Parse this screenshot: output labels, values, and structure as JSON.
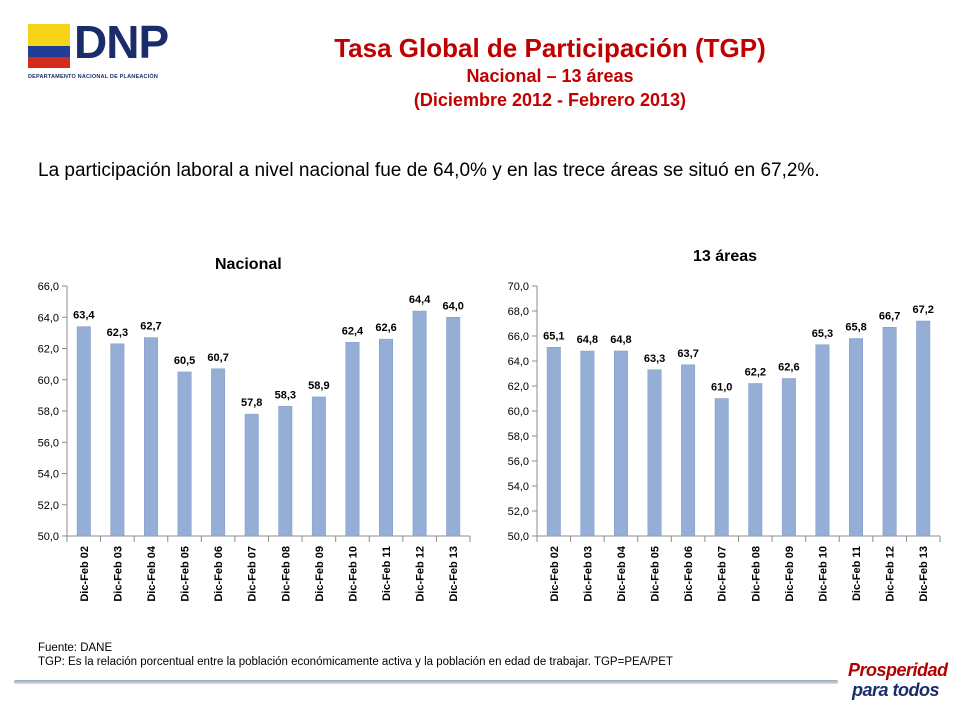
{
  "logo": {
    "word": "DNP",
    "subtitle": "DEPARTAMENTO NACIONAL DE PLANEACIÓN",
    "colors": {
      "yellow": "#f7d417",
      "blue": "#1e3f95",
      "red": "#d52b1e"
    }
  },
  "header": {
    "title": "Tasa Global de Participación (TGP)",
    "subtitle1": "Nacional – 13 áreas",
    "subtitle2": "(Diciembre 2012 - Febrero 2013)"
  },
  "intro": "La participación laboral a nivel nacional fue de 64,0% y en las trece áreas se situó en 67,2%.",
  "chart_data": [
    {
      "type": "bar",
      "title": "Nacional",
      "categories": [
        "Dic-Feb 02",
        "Dic-Feb 03",
        "Dic-Feb 04",
        "Dic-Feb 05",
        "Dic-Feb 06",
        "Dic-Feb 07",
        "Dic-Feb 08",
        "Dic-Feb 09",
        "Dic-Feb 10",
        "Dic-Feb 11",
        "Dic-Feb 12",
        "Dic-Feb 13"
      ],
      "values": [
        63.4,
        62.3,
        62.7,
        60.5,
        60.7,
        57.8,
        58.3,
        58.9,
        62.4,
        62.6,
        64.4,
        64.0
      ],
      "value_labels": [
        "63,4",
        "62,3",
        "62,7",
        "60,5",
        "60,7",
        "57,8",
        "58,3",
        "58,9",
        "62,4",
        "62,6",
        "64,4",
        "64,0"
      ],
      "ylim": [
        50,
        66
      ],
      "yticks": [
        50,
        52,
        54,
        56,
        58,
        60,
        62,
        64,
        66
      ],
      "ytick_labels": [
        "50,0",
        "52,0",
        "54,0",
        "56,0",
        "58,0",
        "60,0",
        "62,0",
        "64,0",
        "66,0"
      ],
      "grid": false,
      "bar_color": "#95aed6"
    },
    {
      "type": "bar",
      "title": "13 áreas",
      "categories": [
        "Dic-Feb 02",
        "Dic-Feb 03",
        "Dic-Feb 04",
        "Dic-Feb 05",
        "Dic-Feb 06",
        "Dic-Feb 07",
        "Dic-Feb 08",
        "Dic-Feb 09",
        "Dic-Feb 10",
        "Dic-Feb 11",
        "Dic-Feb 12",
        "Dic-Feb 13"
      ],
      "values": [
        65.1,
        64.8,
        64.8,
        63.3,
        63.7,
        61.0,
        62.2,
        62.6,
        65.3,
        65.8,
        66.7,
        67.2
      ],
      "value_labels": [
        "65,1",
        "64,8",
        "64,8",
        "63,3",
        "63,7",
        "61,0",
        "62,2",
        "62,6",
        "65,3",
        "65,8",
        "66,7",
        "67,2"
      ],
      "ylim": [
        50,
        70
      ],
      "yticks": [
        50,
        52,
        54,
        56,
        58,
        60,
        62,
        64,
        66,
        68,
        70
      ],
      "ytick_labels": [
        "50,0",
        "52,0",
        "54,0",
        "56,0",
        "58,0",
        "60,0",
        "62,0",
        "64,0",
        "66,0",
        "68,0",
        "70,0"
      ],
      "grid": false,
      "bar_color": "#95aed6"
    }
  ],
  "source": {
    "line1": "Fuente: DANE",
    "line2": "TGP: Es la relación porcentual entre la población económicamente activa y la población  en edad de trabajar. TGP=PEA/PET"
  },
  "badge": {
    "line1": "Prosperidad",
    "line2": "para todos"
  }
}
